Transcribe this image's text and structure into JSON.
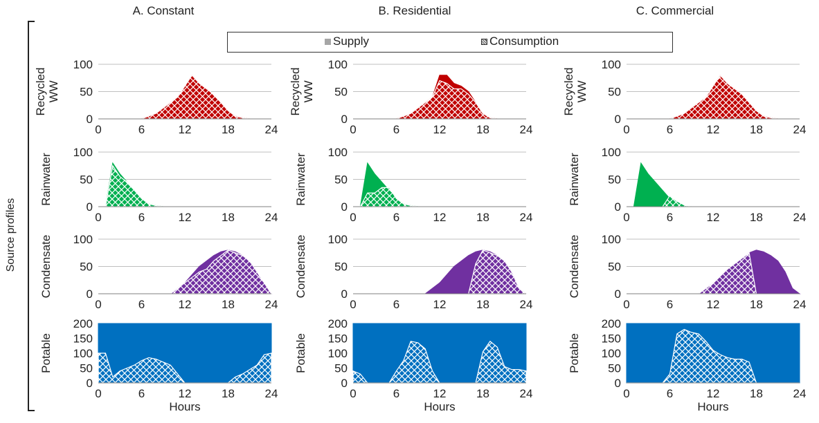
{
  "column_titles": [
    "A. Constant",
    "B. Residential",
    "C. Commercial"
  ],
  "side_label": "Source profiles",
  "legend": {
    "supply_label": "Supply",
    "consumption_label": "Consumption"
  },
  "colors": {
    "recycled": "#c00000",
    "rainwater": "#00b050",
    "condensate": "#7030a0",
    "potable": "#0070c0"
  },
  "chart_data": [
    {
      "type": "area",
      "column": "A. Constant",
      "row": "Recycled WW",
      "ylabel": "Recycled WW",
      "xlabel": "",
      "xticks": [
        0,
        6,
        12,
        18,
        24
      ],
      "yticks": [
        0,
        50,
        100
      ],
      "ylim": [
        0,
        100
      ],
      "xlim": [
        0,
        24
      ],
      "color": "#c00000",
      "series": [
        {
          "name": "Supply",
          "x": [
            6,
            8,
            9,
            10,
            11,
            12,
            13,
            14,
            15,
            16,
            17,
            18,
            19,
            20,
            21,
            22
          ],
          "y": [
            0,
            10,
            20,
            30,
            40,
            60,
            80,
            65,
            55,
            45,
            30,
            15,
            5,
            2,
            0,
            0
          ]
        },
        {
          "name": "Consumption",
          "x": [
            6,
            8,
            9,
            10,
            11,
            12,
            13,
            14,
            15,
            16,
            17,
            18,
            19,
            20,
            21,
            22
          ],
          "y": [
            0,
            10,
            20,
            30,
            40,
            60,
            80,
            65,
            55,
            45,
            30,
            15,
            5,
            2,
            0,
            0
          ]
        }
      ]
    },
    {
      "type": "area",
      "column": "A. Constant",
      "row": "Rainwater",
      "ylabel": "Rainwater",
      "xlabel": "",
      "xticks": [
        0,
        6,
        12,
        18,
        24
      ],
      "yticks": [
        0,
        50,
        100
      ],
      "ylim": [
        0,
        100
      ],
      "xlim": [
        0,
        24
      ],
      "color": "#00b050",
      "series": [
        {
          "name": "Supply",
          "x": [
            1,
            2,
            3,
            4,
            5,
            6,
            7,
            8,
            9,
            10
          ],
          "y": [
            0,
            80,
            60,
            45,
            30,
            15,
            5,
            2,
            0,
            0
          ]
        },
        {
          "name": "Consumption",
          "x": [
            1,
            2,
            3,
            4,
            5,
            6,
            7,
            8,
            9,
            10
          ],
          "y": [
            0,
            75,
            55,
            45,
            30,
            15,
            5,
            2,
            0,
            0
          ]
        }
      ]
    },
    {
      "type": "area",
      "column": "A. Constant",
      "row": "Condensate",
      "ylabel": "Condensate",
      "xlabel": "",
      "xticks": [
        0,
        6,
        12,
        18,
        24
      ],
      "yticks": [
        0,
        50,
        100
      ],
      "ylim": [
        0,
        100
      ],
      "xlim": [
        0,
        24
      ],
      "color": "#7030a0",
      "series": [
        {
          "name": "Supply",
          "x": [
            10,
            12,
            14,
            16,
            17,
            18,
            19,
            20,
            21,
            22,
            23,
            24
          ],
          "y": [
            0,
            20,
            50,
            70,
            77,
            80,
            77,
            70,
            60,
            40,
            10,
            0
          ]
        },
        {
          "name": "Consumption",
          "x": [
            10,
            12,
            13,
            14,
            15,
            16,
            17,
            18,
            19,
            20,
            21,
            22,
            23,
            24
          ],
          "y": [
            0,
            20,
            30,
            40,
            45,
            60,
            70,
            80,
            75,
            70,
            60,
            40,
            20,
            0
          ]
        }
      ]
    },
    {
      "type": "area",
      "column": "A. Constant",
      "row": "Potable",
      "ylabel": "Potable",
      "xlabel": "Hours",
      "xticks": [
        0,
        6,
        12,
        18,
        24
      ],
      "yticks": [
        0,
        50,
        100,
        150,
        200
      ],
      "ylim": [
        0,
        200
      ],
      "xlim": [
        0,
        24
      ],
      "color": "#0070c0",
      "series": [
        {
          "name": "Supply",
          "x": [
            0,
            24
          ],
          "y": [
            200,
            200
          ]
        },
        {
          "name": "Consumption",
          "x": [
            0,
            1,
            2,
            3,
            4,
            5,
            6,
            7,
            8,
            9,
            10,
            11,
            12,
            13,
            14,
            15,
            16,
            17,
            18,
            19,
            20,
            21,
            22,
            23,
            24
          ],
          "y": [
            100,
            100,
            20,
            40,
            50,
            60,
            75,
            85,
            80,
            70,
            60,
            30,
            0,
            0,
            0,
            0,
            0,
            0,
            0,
            20,
            30,
            45,
            60,
            95,
            100
          ]
        }
      ]
    },
    {
      "type": "area",
      "column": "B. Residential",
      "row": "Recycled WW",
      "ylabel": "Recycled WW",
      "xlabel": "",
      "xticks": [
        0,
        6,
        12,
        18,
        24
      ],
      "yticks": [
        0,
        50,
        100
      ],
      "ylim": [
        0,
        100
      ],
      "xlim": [
        0,
        24
      ],
      "color": "#c00000",
      "series": [
        {
          "name": "Supply",
          "x": [
            6,
            8,
            9,
            10,
            11,
            12,
            13,
            14,
            15,
            16,
            17,
            18,
            19,
            20,
            21,
            22
          ],
          "y": [
            0,
            10,
            20,
            30,
            40,
            80,
            80,
            65,
            60,
            50,
            30,
            10,
            2,
            0,
            0,
            0
          ]
        },
        {
          "name": "Consumption",
          "x": [
            6,
            8,
            9,
            10,
            11,
            12,
            13,
            14,
            15,
            16,
            17,
            18,
            19,
            20,
            21,
            22
          ],
          "y": [
            0,
            10,
            20,
            30,
            40,
            70,
            65,
            55,
            55,
            45,
            30,
            10,
            2,
            0,
            0,
            0
          ]
        }
      ]
    },
    {
      "type": "area",
      "column": "B. Residential",
      "row": "Rainwater",
      "ylabel": "Rainwater",
      "xlabel": "",
      "xticks": [
        0,
        6,
        12,
        18,
        24
      ],
      "yticks": [
        0,
        50,
        100
      ],
      "ylim": [
        0,
        100
      ],
      "xlim": [
        0,
        24
      ],
      "color": "#00b050",
      "series": [
        {
          "name": "Supply",
          "x": [
            1,
            2,
            3,
            4,
            5,
            6,
            7,
            8,
            9,
            10
          ],
          "y": [
            0,
            80,
            60,
            45,
            30,
            15,
            5,
            2,
            0,
            0
          ]
        },
        {
          "name": "Consumption",
          "x": [
            1,
            2,
            3,
            4,
            5,
            6,
            7,
            8,
            9,
            10
          ],
          "y": [
            0,
            25,
            25,
            35,
            35,
            15,
            5,
            2,
            0,
            0
          ]
        }
      ]
    },
    {
      "type": "area",
      "column": "B. Residential",
      "row": "Condensate",
      "ylabel": "Condensate",
      "xlabel": "",
      "xticks": [
        0,
        6,
        12,
        18,
        24
      ],
      "yticks": [
        0,
        50,
        100
      ],
      "ylim": [
        0,
        100
      ],
      "xlim": [
        0,
        24
      ],
      "color": "#7030a0",
      "series": [
        {
          "name": "Supply",
          "x": [
            10,
            12,
            14,
            16,
            17,
            18,
            19,
            20,
            21,
            22,
            23,
            24
          ],
          "y": [
            0,
            20,
            50,
            70,
            77,
            80,
            77,
            70,
            60,
            40,
            10,
            0
          ]
        },
        {
          "name": "Consumption",
          "x": [
            16,
            17,
            18,
            19,
            20,
            21,
            22,
            23,
            24
          ],
          "y": [
            0,
            55,
            80,
            75,
            70,
            60,
            40,
            10,
            0
          ]
        }
      ]
    },
    {
      "type": "area",
      "column": "B. Residential",
      "row": "Potable",
      "ylabel": "Potable",
      "xlabel": "Hours",
      "xticks": [
        0,
        6,
        12,
        18,
        24
      ],
      "yticks": [
        0,
        50,
        100,
        150,
        200
      ],
      "ylim": [
        0,
        200
      ],
      "xlim": [
        0,
        24
      ],
      "color": "#0070c0",
      "series": [
        {
          "name": "Supply",
          "x": [
            0,
            24
          ],
          "y": [
            200,
            200
          ]
        },
        {
          "name": "Consumption",
          "x": [
            0,
            1,
            2,
            3,
            4,
            5,
            6,
            7,
            8,
            9,
            10,
            11,
            12,
            13,
            14,
            15,
            16,
            17,
            18,
            19,
            20,
            21,
            22,
            23,
            24
          ],
          "y": [
            40,
            30,
            0,
            0,
            0,
            0,
            40,
            75,
            140,
            135,
            115,
            40,
            0,
            0,
            0,
            0,
            0,
            0,
            105,
            140,
            120,
            55,
            45,
            45,
            40
          ]
        }
      ]
    },
    {
      "type": "area",
      "column": "C. Commercial",
      "row": "Recycled WW",
      "ylabel": "Recycled WW",
      "xlabel": "",
      "xticks": [
        0,
        6,
        12,
        18,
        24
      ],
      "yticks": [
        0,
        50,
        100
      ],
      "ylim": [
        0,
        100
      ],
      "xlim": [
        0,
        24
      ],
      "color": "#c00000",
      "series": [
        {
          "name": "Supply",
          "x": [
            6,
            8,
            9,
            10,
            11,
            12,
            13,
            14,
            15,
            16,
            17,
            18,
            19,
            20,
            21,
            22
          ],
          "y": [
            0,
            10,
            20,
            30,
            40,
            60,
            80,
            65,
            55,
            45,
            30,
            15,
            5,
            2,
            0,
            0
          ]
        },
        {
          "name": "Consumption",
          "x": [
            6,
            8,
            9,
            10,
            11,
            12,
            13,
            14,
            15,
            16,
            17,
            18,
            19,
            20,
            21,
            22
          ],
          "y": [
            0,
            10,
            20,
            30,
            40,
            60,
            80,
            65,
            55,
            45,
            30,
            15,
            5,
            2,
            0,
            0
          ]
        }
      ]
    },
    {
      "type": "area",
      "column": "C. Commercial",
      "row": "Rainwater",
      "ylabel": "Rainwater",
      "xlabel": "",
      "xticks": [
        0,
        6,
        12,
        18,
        24
      ],
      "yticks": [
        0,
        50,
        100
      ],
      "ylim": [
        0,
        100
      ],
      "xlim": [
        0,
        24
      ],
      "color": "#00b050",
      "series": [
        {
          "name": "Supply",
          "x": [
            1,
            2,
            3,
            4,
            5,
            6,
            7,
            8,
            9,
            10
          ],
          "y": [
            0,
            80,
            60,
            45,
            30,
            15,
            5,
            2,
            0,
            0
          ]
        },
        {
          "name": "Consumption",
          "x": [
            5,
            6,
            7,
            8,
            9,
            10
          ],
          "y": [
            0,
            20,
            10,
            3,
            0,
            0
          ]
        }
      ]
    },
    {
      "type": "area",
      "column": "C. Commercial",
      "row": "Condensate",
      "ylabel": "Condensate",
      "xlabel": "",
      "xticks": [
        0,
        6,
        12,
        18,
        24
      ],
      "yticks": [
        0,
        50,
        100
      ],
      "ylim": [
        0,
        100
      ],
      "xlim": [
        0,
        24
      ],
      "color": "#7030a0",
      "series": [
        {
          "name": "Supply",
          "x": [
            10,
            12,
            14,
            16,
            17,
            18,
            19,
            20,
            21,
            22,
            23,
            24
          ],
          "y": [
            0,
            20,
            45,
            65,
            75,
            80,
            77,
            70,
            60,
            40,
            10,
            0
          ]
        },
        {
          "name": "Consumption",
          "x": [
            10,
            12,
            14,
            16,
            17,
            18
          ],
          "y": [
            0,
            20,
            45,
            65,
            75,
            0
          ]
        }
      ]
    },
    {
      "type": "area",
      "column": "C. Commercial",
      "row": "Potable",
      "ylabel": "Potable",
      "xlabel": "Hours",
      "xticks": [
        0,
        6,
        12,
        18,
        24
      ],
      "yticks": [
        0,
        50,
        100,
        150,
        200
      ],
      "ylim": [
        0,
        200
      ],
      "xlim": [
        0,
        24
      ],
      "color": "#0070c0",
      "series": [
        {
          "name": "Supply",
          "x": [
            0,
            24
          ],
          "y": [
            200,
            200
          ]
        },
        {
          "name": "Consumption",
          "x": [
            0,
            1,
            2,
            3,
            4,
            5,
            6,
            7,
            8,
            9,
            10,
            11,
            12,
            13,
            14,
            15,
            16,
            17,
            18,
            19,
            20,
            21,
            22,
            23,
            24
          ],
          "y": [
            0,
            0,
            0,
            0,
            0,
            0,
            30,
            165,
            180,
            170,
            165,
            140,
            110,
            95,
            85,
            80,
            80,
            70,
            0,
            0,
            0,
            0,
            0,
            0,
            0
          ]
        }
      ]
    }
  ]
}
